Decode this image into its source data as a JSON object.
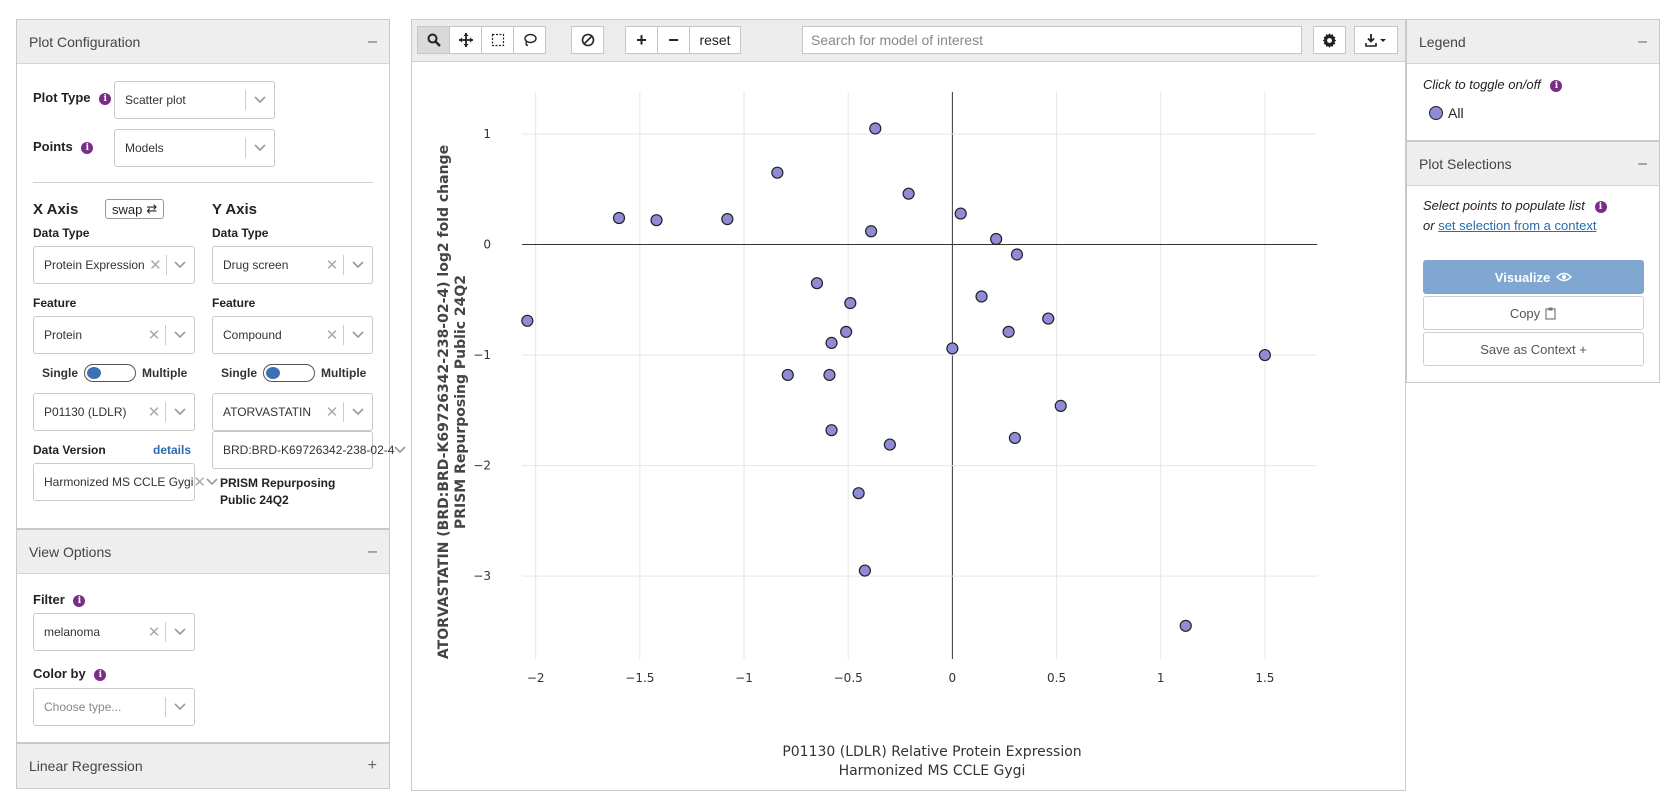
{
  "left": {
    "plot_config": {
      "title": "Plot Configuration",
      "toggle": "–",
      "plot_type_label": "Plot Type",
      "plot_type_value": "Scatter plot",
      "points_label": "Points",
      "points_value": "Models"
    },
    "x_axis": {
      "title": "X Axis",
      "swap_label": "swap",
      "data_type_label": "Data Type",
      "data_type_value": "Protein Expression",
      "feature_label": "Feature",
      "feature_value": "Protein",
      "single_label": "Single",
      "multiple_label": "Multiple",
      "selected_feature": "P01130 (LDLR)",
      "data_version_label": "Data Version",
      "details_label": "details",
      "data_version_value": "Harmonized MS CCLE Gygi"
    },
    "y_axis": {
      "title": "Y Axis",
      "data_type_label": "Data Type",
      "data_type_value": "Drug screen",
      "feature_label": "Feature",
      "feature_value": "Compound",
      "single_label": "Single",
      "multiple_label": "Multiple",
      "selected_feature": "ATORVASTATIN",
      "dataset_value": "BRD:BRD-K69726342-238-02-4",
      "dataset_caption": "PRISM Repurposing Public 24Q2"
    },
    "view_options": {
      "title": "View Options",
      "toggle": "–",
      "filter_label": "Filter",
      "filter_value": "melanoma",
      "color_by_label": "Color by",
      "color_by_placeholder": "Choose type..."
    },
    "linear_regression": {
      "title": "Linear Regression",
      "toggle": "+"
    }
  },
  "toolbar": {
    "search_placeholder": "Search for model of interest",
    "reset_label": "reset"
  },
  "legend": {
    "title": "Legend",
    "toggle": "–",
    "hint": "Click to toggle on/off",
    "item_label": "All",
    "item_color": "#8f8bd6"
  },
  "selections": {
    "title": "Plot Selections",
    "toggle": "–",
    "hint": "Select points to populate list",
    "or_text": "or",
    "link_text": "set selection from a context",
    "visualize_label": "Visualize",
    "copy_label": "Copy",
    "save_label": "Save as Context +"
  },
  "chart_data": {
    "type": "scatter",
    "xlabel_line1": "P01130 (LDLR) Relative Protein Expression",
    "xlabel_line2": "Harmonized MS CCLE Gygi",
    "ylabel_line1": "ATORVASTATIN (BRD:BRD-K69726342-238-02-4) log2 fold change",
    "ylabel_line2": "PRISM Repurposing Public 24Q2",
    "xlim": [
      -2.2,
      1.75
    ],
    "ylim": [
      -3.75,
      1.38
    ],
    "xticks": [
      -2,
      -1.5,
      -1,
      -0.5,
      0,
      0.5,
      1,
      1.5
    ],
    "xtick_labels": [
      "−2",
      "−1.5",
      "−1",
      "−0.5",
      "0",
      "0.5",
      "1",
      "1.5"
    ],
    "yticks": [
      -3,
      -2,
      -1,
      0,
      1
    ],
    "ytick_labels": [
      "−3",
      "−2",
      "−1",
      "0",
      "1"
    ],
    "grid": true,
    "marker_color": "#8f8bd6",
    "points": [
      {
        "x": -2.04,
        "y": -0.69
      },
      {
        "x": -1.6,
        "y": 0.24
      },
      {
        "x": -1.42,
        "y": 0.22
      },
      {
        "x": -1.08,
        "y": 0.23
      },
      {
        "x": -0.84,
        "y": 0.65
      },
      {
        "x": -0.79,
        "y": -1.18
      },
      {
        "x": -0.65,
        "y": -0.35
      },
      {
        "x": -0.59,
        "y": -1.18
      },
      {
        "x": -0.58,
        "y": -1.68
      },
      {
        "x": -0.58,
        "y": -0.89
      },
      {
        "x": -0.51,
        "y": -0.79
      },
      {
        "x": -0.49,
        "y": -0.53
      },
      {
        "x": -0.45,
        "y": -2.25
      },
      {
        "x": -0.42,
        "y": -2.95
      },
      {
        "x": -0.39,
        "y": 0.12
      },
      {
        "x": -0.37,
        "y": 1.05
      },
      {
        "x": -0.3,
        "y": -1.81
      },
      {
        "x": -0.21,
        "y": 0.46
      },
      {
        "x": 0.0,
        "y": -0.94
      },
      {
        "x": 0.04,
        "y": 0.28
      },
      {
        "x": 0.14,
        "y": -0.47
      },
      {
        "x": 0.21,
        "y": 0.05
      },
      {
        "x": 0.27,
        "y": -0.79
      },
      {
        "x": 0.3,
        "y": -1.75
      },
      {
        "x": 0.31,
        "y": -0.09
      },
      {
        "x": 0.46,
        "y": -0.67
      },
      {
        "x": 0.52,
        "y": -1.46
      },
      {
        "x": 1.12,
        "y": -3.45
      },
      {
        "x": 1.5,
        "y": -1.0
      }
    ]
  }
}
